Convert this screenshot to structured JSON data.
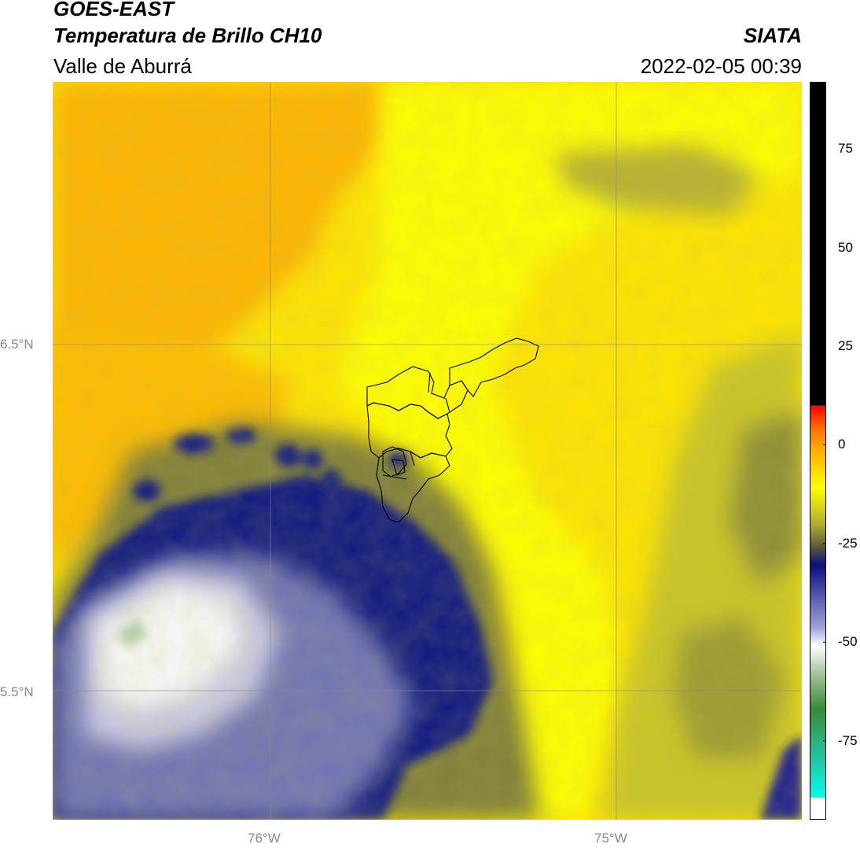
{
  "header": {
    "satellite": "GOES-EAST",
    "product": "Temperatura de Brillo CH10",
    "region": "Valle de Aburrá",
    "agency": "SIATA",
    "timestamp": "2022-02-05 00:39"
  },
  "map": {
    "lon_labels": [
      "76°W",
      "75°W"
    ],
    "lat_labels": [
      "6.5°N",
      "5.5°N"
    ],
    "colors": {
      "warm_orange": "#ffb000",
      "yellow": "#ffff00",
      "olive": "#8d8d2a",
      "navy": "#0a1080",
      "lavender": "#9a9cd0",
      "white": "#ffffff",
      "green_haze": "#cfe0c8"
    }
  },
  "colorbar": {
    "tick_labels": [
      "75",
      "50",
      "25",
      "0",
      "-25",
      "-50",
      "-75"
    ],
    "tick_values": [
      75,
      50,
      25,
      0,
      -25,
      -50,
      -75
    ],
    "range": [
      -95,
      92
    ]
  }
}
